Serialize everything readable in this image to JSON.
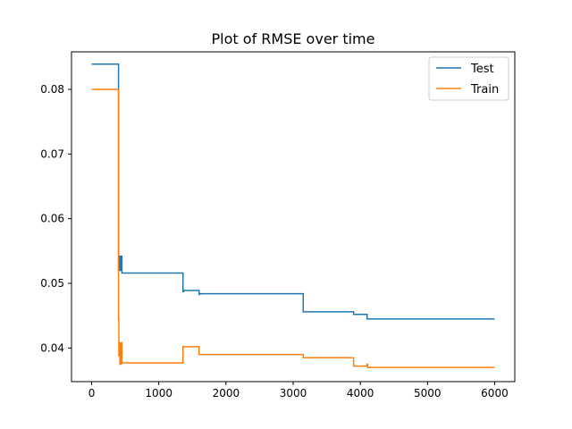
{
  "chart_data": {
    "type": "line",
    "title": "Plot of RMSE over time",
    "xlabel": "",
    "ylabel": "",
    "xlim": [
      -300,
      6300
    ],
    "ylim": [
      0.0348,
      0.0858
    ],
    "xticks": [
      0,
      1000,
      2000,
      3000,
      4000,
      5000,
      6000
    ],
    "yticks": [
      0.04,
      0.05,
      0.06,
      0.07,
      0.08
    ],
    "xtick_labels": [
      "0",
      "1000",
      "2000",
      "3000",
      "4000",
      "5000",
      "6000"
    ],
    "ytick_labels": [
      "0.04",
      "0.05",
      "0.06",
      "0.07",
      "0.08"
    ],
    "grid": false,
    "legend_position": "top-right",
    "series": [
      {
        "name": "Test",
        "color": "#1f77b4",
        "x": [
          0,
          400,
          400,
          410,
          410,
          420,
          420,
          440,
          440,
          450,
          450,
          1360,
          1360,
          1370,
          1370,
          1600,
          1600,
          1610,
          1610,
          3150,
          3150,
          3160,
          3160,
          3900,
          3900,
          4100,
          4100,
          6000
        ],
        "y": [
          0.0839,
          0.0839,
          0.052,
          0.052,
          0.0542,
          0.0542,
          0.052,
          0.052,
          0.0542,
          0.0542,
          0.0516,
          0.0516,
          0.0487,
          0.0487,
          0.0489,
          0.0489,
          0.0483,
          0.0483,
          0.0484,
          0.0484,
          0.0456,
          0.0456,
          0.0456,
          0.0456,
          0.0452,
          0.0452,
          0.0445,
          0.0445
        ]
      },
      {
        "name": "Train",
        "color": "#ff7f0e",
        "x": [
          0,
          400,
          400,
          405,
          405,
          410,
          410,
          420,
          420,
          440,
          440,
          450,
          450,
          1360,
          1360,
          1370,
          1370,
          1600,
          1600,
          1610,
          1610,
          3150,
          3150,
          3160,
          3160,
          3900,
          3900,
          4100,
          4100,
          4110,
          4110,
          6000
        ],
        "y": [
          0.08,
          0.08,
          0.0445,
          0.0445,
          0.0388,
          0.0388,
          0.0408,
          0.0408,
          0.0375,
          0.0375,
          0.0408,
          0.0408,
          0.0377,
          0.0377,
          0.0402,
          0.0402,
          0.0402,
          0.0402,
          0.039,
          0.039,
          0.039,
          0.039,
          0.0385,
          0.0385,
          0.0385,
          0.0385,
          0.0372,
          0.0372,
          0.0375,
          0.0375,
          0.037,
          0.037
        ]
      }
    ]
  }
}
